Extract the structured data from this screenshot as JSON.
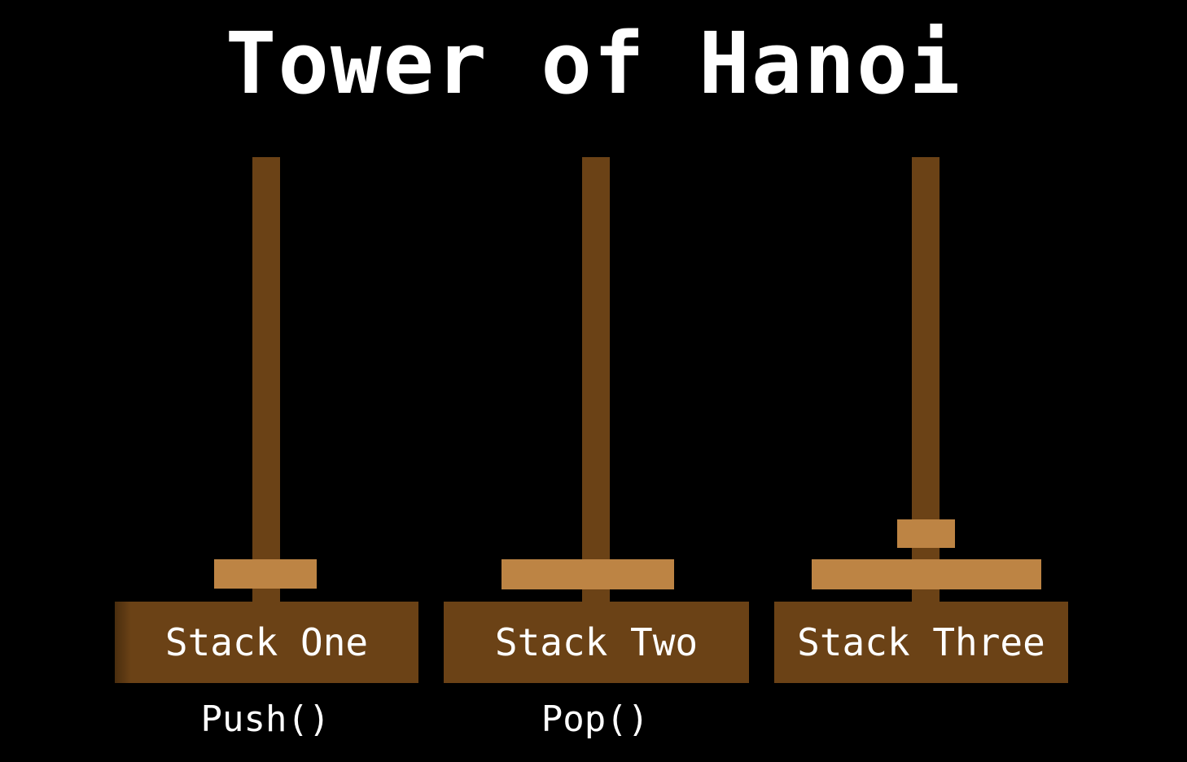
{
  "title": "Tower of Hanoi",
  "colors": {
    "background": "#000000",
    "rod": "#6b4216",
    "base": "#6b4216",
    "disk": "#bd8444",
    "text": "#ffffff"
  },
  "stacks": [
    {
      "label": "Stack One",
      "operation": "Push()",
      "disk_count": 1
    },
    {
      "label": "Stack Two",
      "operation": "Pop()",
      "disk_count": 1
    },
    {
      "label": "Stack Three",
      "operation": "",
      "disk_count": 2
    }
  ]
}
